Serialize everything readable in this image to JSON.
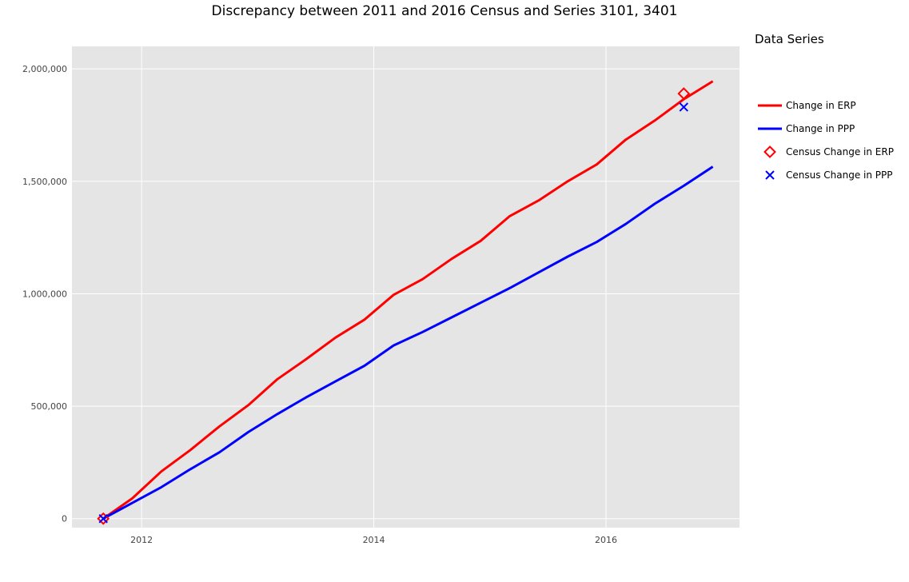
{
  "chart_data": {
    "type": "line",
    "title": "Discrepancy between 2011 and 2016 Census and Series 3101, 3401",
    "xlabel": "",
    "ylabel": "",
    "xlim": [
      2011.4,
      2017.15
    ],
    "ylim": [
      -40000,
      2100000
    ],
    "x_ticks": [
      2012,
      2014,
      2016
    ],
    "x_tick_labels": [
      "2012",
      "2014",
      "2016"
    ],
    "y_ticks": [
      0,
      500000,
      1000000,
      1500000,
      2000000
    ],
    "y_tick_labels": [
      "0",
      "500,000",
      "1,000,000",
      "1,500,000",
      "2,000,000"
    ],
    "grid": true,
    "legend": {
      "title": "Data Series",
      "position": "right"
    },
    "series": [
      {
        "name": "Change in ERP",
        "kind": "line",
        "color": "#ff0000",
        "x": [
          2011.67,
          2011.92,
          2012.17,
          2012.42,
          2012.67,
          2012.92,
          2013.17,
          2013.42,
          2013.67,
          2013.92,
          2014.17,
          2014.42,
          2014.67,
          2014.92,
          2015.17,
          2015.42,
          2015.67,
          2015.92,
          2016.17,
          2016.42,
          2016.67,
          2016.92
        ],
        "y": [
          0,
          90000,
          210000,
          305000,
          410000,
          505000,
          620000,
          710000,
          805000,
          885000,
          995000,
          1065000,
          1155000,
          1235000,
          1345000,
          1415000,
          1500000,
          1575000,
          1685000,
          1770000,
          1865000,
          1945000
        ]
      },
      {
        "name": "Change in PPP",
        "kind": "line",
        "color": "#0000ff",
        "x": [
          2011.67,
          2011.92,
          2012.17,
          2012.42,
          2012.67,
          2012.92,
          2013.17,
          2013.42,
          2013.67,
          2013.92,
          2014.17,
          2014.42,
          2014.67,
          2014.92,
          2015.17,
          2015.42,
          2015.67,
          2015.92,
          2016.17,
          2016.42,
          2016.67,
          2016.92
        ],
        "y": [
          0,
          70000,
          140000,
          220000,
          295000,
          385000,
          465000,
          540000,
          610000,
          680000,
          770000,
          830000,
          895000,
          960000,
          1025000,
          1095000,
          1165000,
          1230000,
          1310000,
          1400000,
          1480000,
          1565000
        ]
      },
      {
        "name": "Census Change in ERP",
        "kind": "marker",
        "marker": "diamond-open",
        "color": "#ff0000",
        "x": [
          2011.67,
          2016.67
        ],
        "y": [
          0,
          1890000
        ]
      },
      {
        "name": "Census Change in PPP",
        "kind": "marker",
        "marker": "x",
        "color": "#0000ff",
        "x": [
          2011.67,
          2016.67
        ],
        "y": [
          0,
          1830000
        ]
      }
    ]
  }
}
